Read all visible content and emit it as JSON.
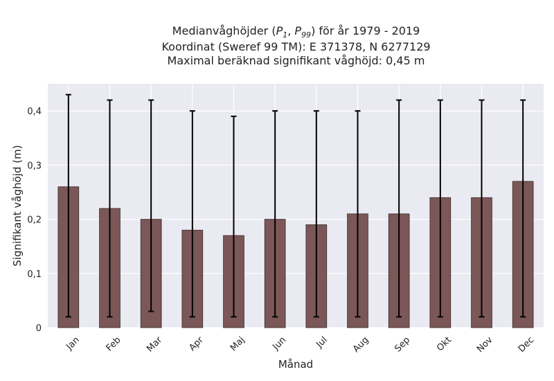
{
  "chart_data": {
    "type": "bar",
    "title_lines": [
      "Medianvåghöjder (P",
      "Koordinat (Sweref 99 TM): E 371378, N 6277129",
      "Maximal beräknad signifikant våghöjd: 0,45 m"
    ],
    "title_parts": {
      "prefix": "Medianvåghöjder (",
      "p1_base": "P",
      "p1_sub": "1",
      "sep": ", ",
      "p99_base": "P",
      "p99_sub": "99",
      "suffix": ") för år 1979 - 2019"
    },
    "xlabel": "Månad",
    "ylabel": "Signifikant våghöjd (m)",
    "categories": [
      "Jan",
      "Feb",
      "Mar",
      "Apr",
      "Maj",
      "Jun",
      "Jul",
      "Aug",
      "Sep",
      "Okt",
      "Nov",
      "Dec"
    ],
    "values": [
      0.26,
      0.22,
      0.2,
      0.18,
      0.17,
      0.2,
      0.19,
      0.21,
      0.21,
      0.24,
      0.24,
      0.27
    ],
    "p1": [
      0.02,
      0.02,
      0.03,
      0.02,
      0.02,
      0.02,
      0.02,
      0.02,
      0.02,
      0.02,
      0.02,
      0.02
    ],
    "p99": [
      0.43,
      0.42,
      0.42,
      0.4,
      0.39,
      0.4,
      0.4,
      0.4,
      0.42,
      0.42,
      0.42,
      0.42
    ],
    "ylim": [
      0,
      0.45
    ],
    "yticks": [
      0,
      0.1,
      0.2,
      0.3,
      0.4
    ],
    "ytick_labels": [
      "0",
      "0,1",
      "0,2",
      "0,3",
      "0,4"
    ],
    "grid": true,
    "colors": {
      "bar": "#7b5757",
      "bar_edge": "#3a2a2a",
      "plot_bg": "#eaeaf2",
      "grid": "#ffffff",
      "errorbar": "#000000"
    }
  }
}
